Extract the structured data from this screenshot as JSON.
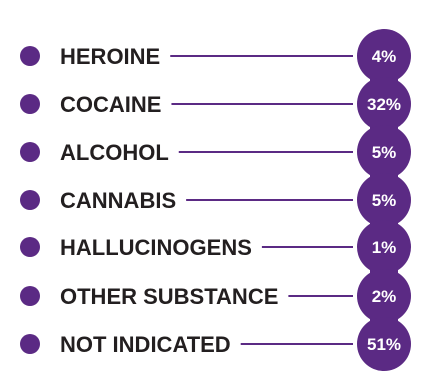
{
  "chart_data": {
    "type": "table",
    "title": "",
    "categories": [
      "HEROINE",
      "COCAINE",
      "ALCOHOL",
      "CANNABIS",
      "HALLUCINOGENS",
      "OTHER SUBSTANCE",
      "NOT INDICATED"
    ],
    "values": [
      4,
      32,
      5,
      5,
      1,
      2,
      51
    ],
    "value_labels": [
      "4%",
      "32%",
      "5%",
      "5%",
      "1%",
      "2%",
      "51%"
    ],
    "unit": "%"
  },
  "colors": {
    "accent": "#5b2a84",
    "label_text": "#231f20",
    "value_text": "#ffffff"
  }
}
